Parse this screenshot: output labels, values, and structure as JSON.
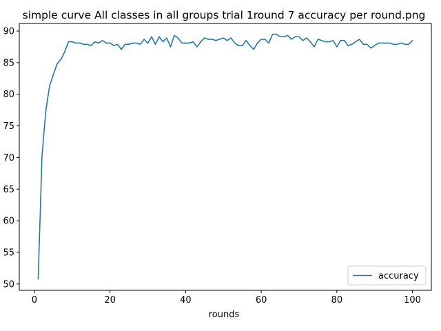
{
  "chart_data": {
    "type": "line",
    "title": "simple curve All classes in all groups trial 1round 7 accuracy per round.png",
    "xlabel": "rounds",
    "ylabel": "",
    "xlim": [
      -4,
      105
    ],
    "ylim": [
      49,
      91.2
    ],
    "xticks": [
      0,
      20,
      40,
      60,
      80,
      100
    ],
    "yticks": [
      50,
      55,
      60,
      65,
      70,
      75,
      80,
      85,
      90
    ],
    "ytick_labels": [
      "50",
      "55",
      "60",
      "65",
      "70",
      "75",
      "80",
      "85",
      "90"
    ],
    "grid": false,
    "legend_position": "lower right",
    "series": [
      {
        "name": "accuracy",
        "color": "#1f77b4",
        "x": [
          1,
          2,
          3,
          4,
          5,
          6,
          7,
          8,
          9,
          10,
          11,
          12,
          13,
          14,
          15,
          16,
          17,
          18,
          19,
          20,
          21,
          22,
          23,
          24,
          25,
          26,
          27,
          28,
          29,
          30,
          31,
          32,
          33,
          34,
          35,
          36,
          37,
          38,
          39,
          40,
          41,
          42,
          43,
          44,
          45,
          46,
          47,
          48,
          49,
          50,
          51,
          52,
          53,
          54,
          55,
          56,
          57,
          58,
          59,
          60,
          61,
          62,
          63,
          64,
          65,
          66,
          67,
          68,
          69,
          70,
          71,
          72,
          73,
          74,
          75,
          76,
          77,
          78,
          79,
          80,
          81,
          82,
          83,
          84,
          85,
          86,
          87,
          88,
          89,
          90,
          91,
          92,
          93,
          94,
          95,
          96,
          97,
          98,
          99,
          100
        ],
        "values": [
          50.8,
          70.2,
          77.3,
          81.3,
          83.1,
          84.8,
          85.5,
          86.7,
          88.3,
          88.3,
          88.1,
          88.1,
          87.9,
          87.9,
          87.7,
          88.3,
          88.1,
          88.5,
          88.1,
          88.1,
          87.7,
          87.9,
          87.1,
          87.9,
          87.9,
          88.1,
          88.1,
          87.9,
          88.7,
          88.1,
          89.1,
          87.9,
          89.1,
          88.3,
          88.9,
          87.5,
          89.3,
          88.9,
          88.1,
          88.1,
          88.1,
          88.3,
          87.5,
          88.3,
          88.9,
          88.7,
          88.7,
          88.5,
          88.7,
          88.9,
          88.5,
          88.9,
          88.1,
          87.7,
          87.7,
          88.5,
          87.7,
          87.1,
          88.1,
          88.7,
          88.7,
          88.1,
          89.5,
          89.5,
          89.1,
          89.1,
          89.3,
          88.7,
          89.1,
          89.1,
          88.5,
          88.9,
          88.3,
          87.5,
          88.7,
          88.5,
          88.3,
          88.3,
          88.5,
          87.5,
          88.5,
          88.5,
          87.7,
          87.9,
          88.3,
          88.7,
          87.9,
          87.9,
          87.3,
          87.7,
          88.1,
          88.1,
          88.1,
          88.1,
          87.9,
          87.9,
          88.1,
          87.9,
          87.9,
          88.5
        ]
      }
    ]
  }
}
